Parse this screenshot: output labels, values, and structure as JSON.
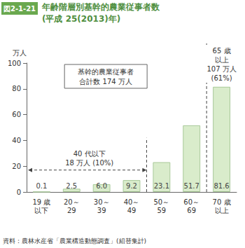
{
  "chart_data": {
    "type": "bar",
    "figure_label": "図2-1-21",
    "title": "年齢階層別基幹的農業従事者数",
    "subtitle": "(平成 25(2013)年)",
    "y_label": "万人",
    "categories": [
      "19 歳\n以下",
      "20～\n29",
      "30～\n39",
      "40～\n49",
      "50～\n59",
      "60～\n69",
      "70 歳\n以上"
    ],
    "values": [
      0.1,
      2.5,
      6.0,
      9.2,
      23.1,
      51.7,
      81.6
    ],
    "value_labels": [
      "0.1",
      "2.5",
      "6.0",
      "9.2",
      "23.1",
      "51.7",
      "81.6"
    ],
    "color": "#d9eccb",
    "ylim": [
      0,
      100
    ],
    "yticks": [
      0,
      20,
      40,
      60,
      80,
      100
    ],
    "grid": false,
    "data_labels": true,
    "annotations": [
      "基幹的農業従事者\n合計数 174 万人",
      "40 代以下\n18 万人 (10%)",
      "65 歳\n以上\n107 万人\n(61%)"
    ],
    "source": "資料：農林水産省「農業構造動態調査」(組替集計)"
  }
}
